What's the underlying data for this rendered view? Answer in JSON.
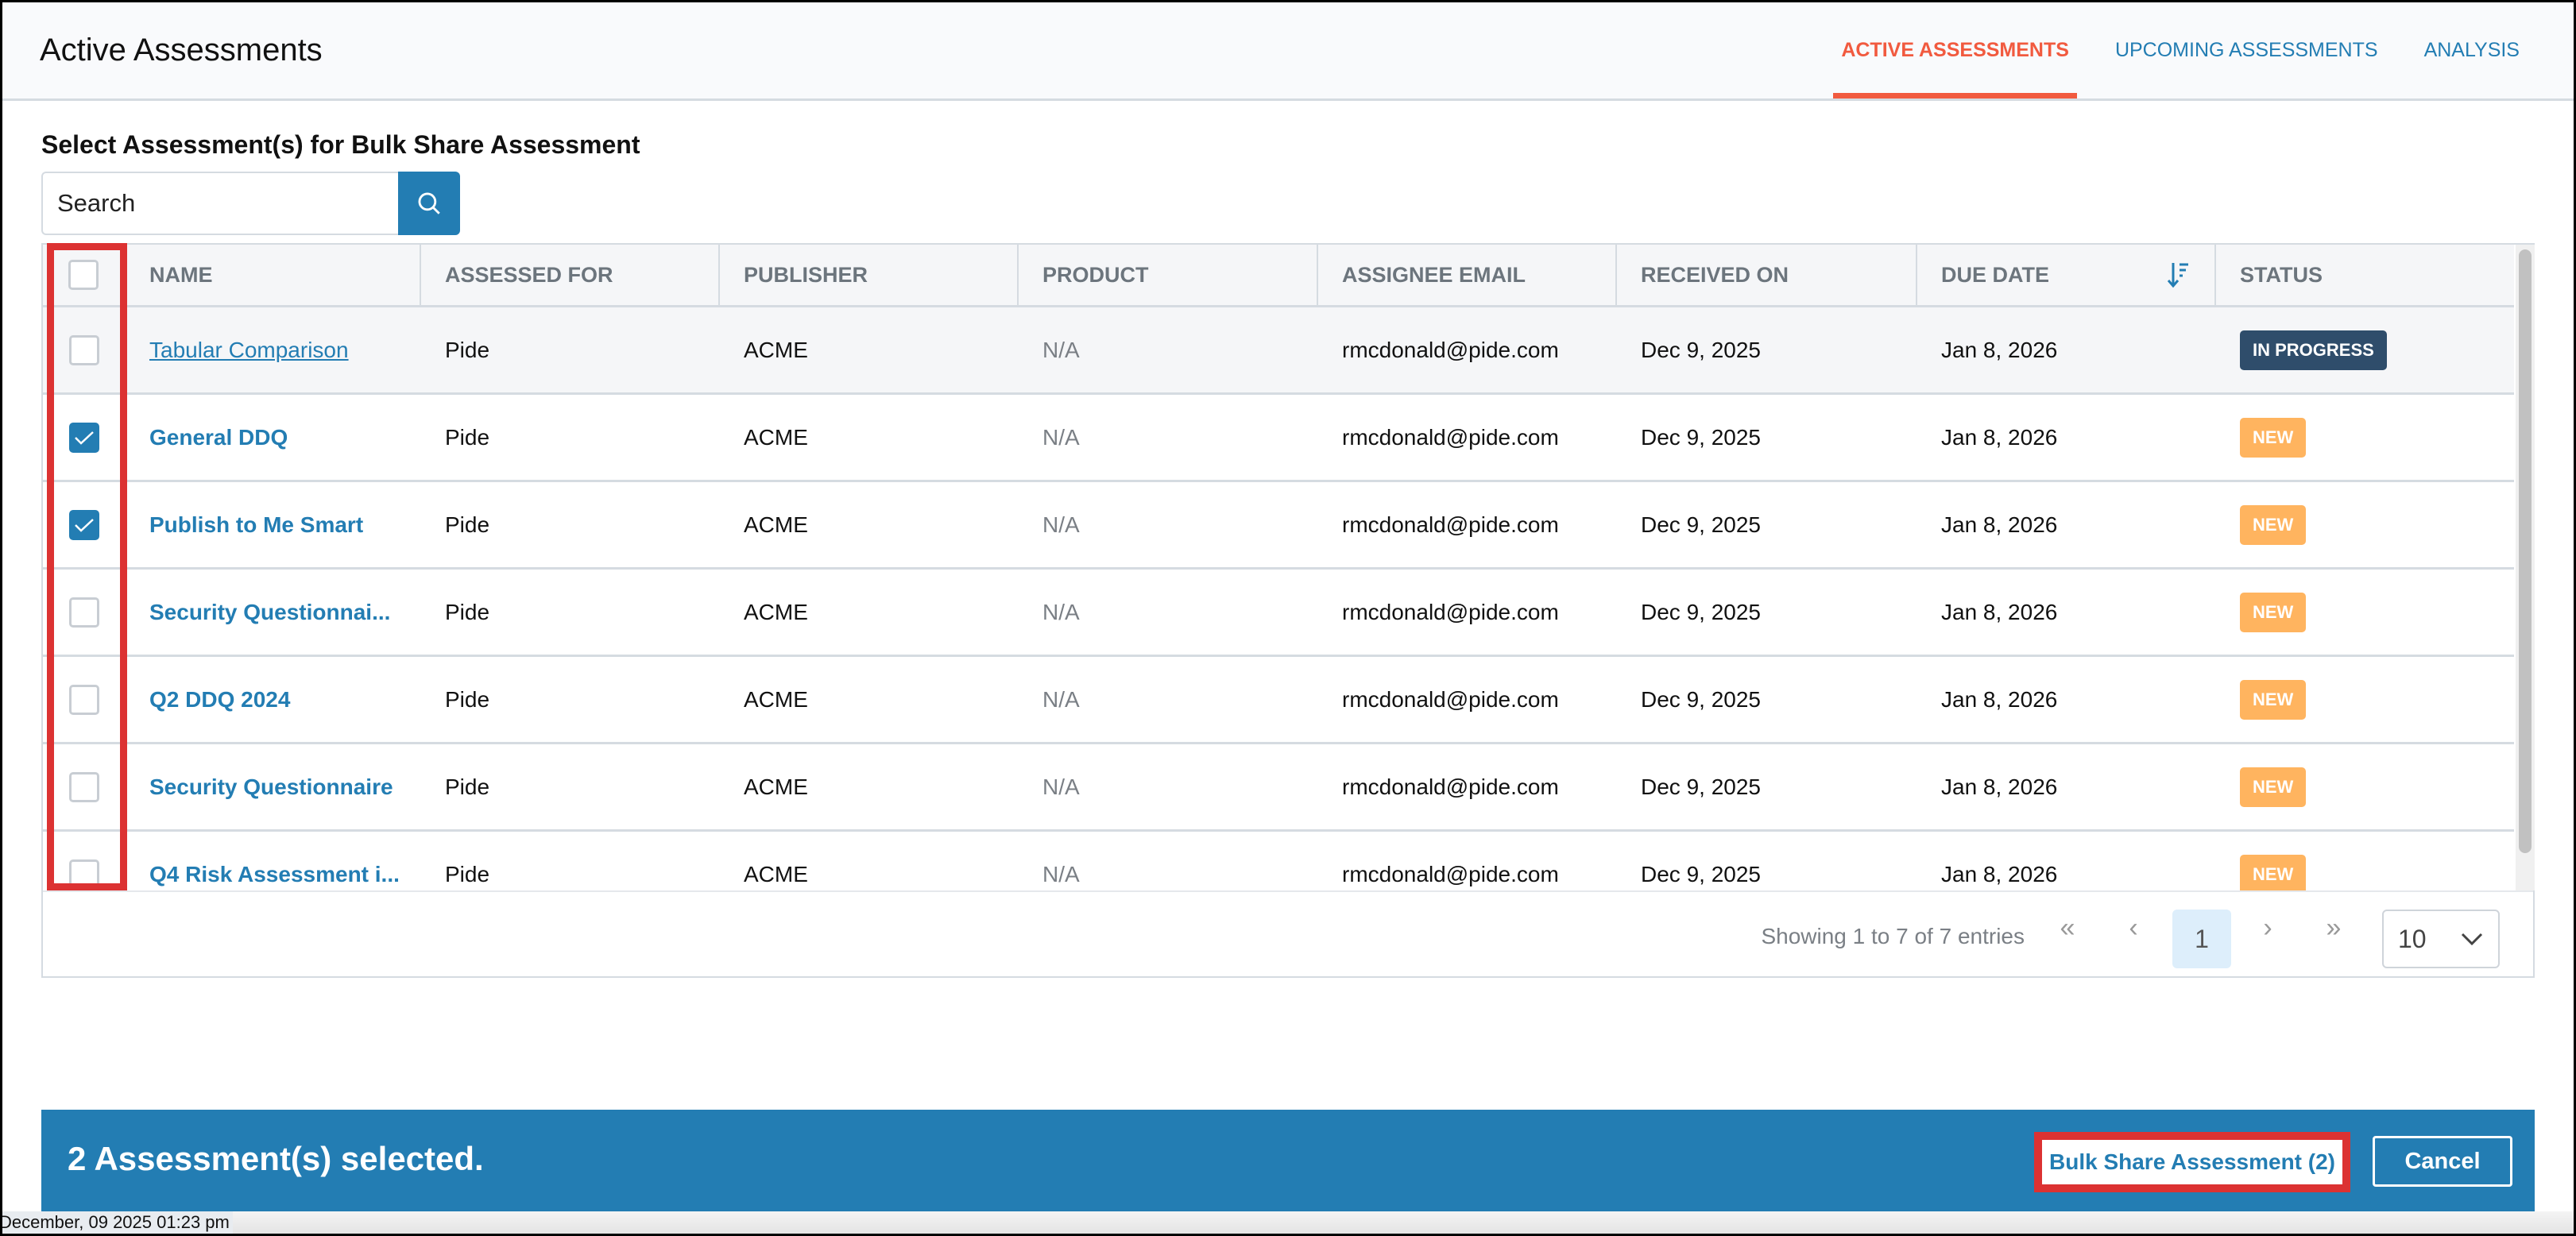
{
  "header": {
    "title": "Active Assessments",
    "tabs": [
      {
        "label": "ACTIVE ASSESSMENTS",
        "active": true
      },
      {
        "label": "UPCOMING ASSESSMENTS",
        "active": false
      },
      {
        "label": "ANALYSIS",
        "active": false
      }
    ]
  },
  "subtitle": "Select Assessment(s) for Bulk Share Assessment",
  "search": {
    "placeholder": "Search",
    "value": ""
  },
  "table": {
    "columns": [
      "NAME",
      "ASSESSED FOR",
      "PUBLISHER",
      "PRODUCT",
      "ASSIGNEE EMAIL",
      "RECEIVED ON",
      "DUE DATE",
      "STATUS"
    ],
    "sort": {
      "column": "DUE DATE",
      "direction": "descending"
    },
    "rows": [
      {
        "checked": false,
        "name": "Tabular Comparison",
        "assessed_for": "Pide",
        "publisher": "ACME",
        "product": "N/A",
        "email": "rmcdonald@pide.com",
        "received": "Dec 9, 2025",
        "due": "Jan 8, 2026",
        "status": "IN PROGRESS"
      },
      {
        "checked": true,
        "name": "General DDQ",
        "assessed_for": "Pide",
        "publisher": "ACME",
        "product": "N/A",
        "email": "rmcdonald@pide.com",
        "received": "Dec 9, 2025",
        "due": "Jan 8, 2026",
        "status": "NEW"
      },
      {
        "checked": true,
        "name": "Publish to Me Smart",
        "assessed_for": "Pide",
        "publisher": "ACME",
        "product": "N/A",
        "email": "rmcdonald@pide.com",
        "received": "Dec 9, 2025",
        "due": "Jan 8, 2026",
        "status": "NEW"
      },
      {
        "checked": false,
        "name": "Security Questionnai...",
        "assessed_for": "Pide",
        "publisher": "ACME",
        "product": "N/A",
        "email": "rmcdonald@pide.com",
        "received": "Dec 9, 2025",
        "due": "Jan 8, 2026",
        "status": "NEW"
      },
      {
        "checked": false,
        "name": "Q2 DDQ 2024",
        "assessed_for": "Pide",
        "publisher": "ACME",
        "product": "N/A",
        "email": "rmcdonald@pide.com",
        "received": "Dec 9, 2025",
        "due": "Jan 8, 2026",
        "status": "NEW"
      },
      {
        "checked": false,
        "name": "Security Questionnaire",
        "assessed_for": "Pide",
        "publisher": "ACME",
        "product": "N/A",
        "email": "rmcdonald@pide.com",
        "received": "Dec 9, 2025",
        "due": "Jan 8, 2026",
        "status": "NEW"
      },
      {
        "checked": false,
        "name": "Q4 Risk Assessment i...",
        "assessed_for": "Pide",
        "publisher": "ACME",
        "product": "N/A",
        "email": "rmcdonald@pide.com",
        "received": "Dec 9, 2025",
        "due": "Jan 8, 2026",
        "status": "NEW"
      }
    ]
  },
  "status_colors": {
    "IN PROGRESS": "#2f4d6b",
    "NEW": "#ffb45f"
  },
  "pagination": {
    "showing": "Showing 1 to 7 of 7 entries",
    "first": "«",
    "prev": "‹",
    "current": "1",
    "next": "›",
    "last": "»",
    "page_size": "10"
  },
  "footer_bar": {
    "selected_text": "2 Assessment(s) selected.",
    "bulk_button": "Bulk Share Assessment (2)",
    "cancel_button": "Cancel"
  },
  "timestamp": "December, 09 2025 01:23 pm",
  "colors": {
    "accent": "#237db3",
    "active_tab": "#f15a3f",
    "highlight": "#dc3232"
  }
}
